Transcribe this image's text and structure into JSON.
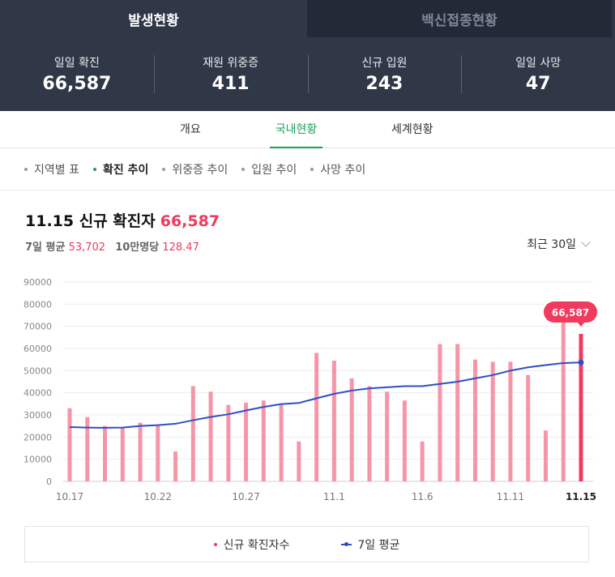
{
  "tabs": {
    "main": "발생현황",
    "vaccine": "백신접종현황"
  },
  "stats": [
    {
      "label": "일일 확진",
      "value": "66,587"
    },
    {
      "label": "재원 위중증",
      "value": "411"
    },
    {
      "label": "신규 입원",
      "value": "243"
    },
    {
      "label": "일일 사망",
      "value": "47"
    }
  ],
  "subnav": {
    "overview": "개요",
    "domestic": "국내현황",
    "world": "세계현황"
  },
  "chips": [
    "지역별 표",
    "확진 추이",
    "위중증 추이",
    "입원 추이",
    "사망 추이"
  ],
  "header": {
    "date": "11.15 신규 확진자",
    "value": "66,587",
    "avg_label": "7일 평균",
    "avg_value": "53,702",
    "per100k_label": "10만명당",
    "per100k_value": "128.47",
    "period": "최근 30일"
  },
  "legend": {
    "bars": "신규 확진자수",
    "line": "7일 평균"
  },
  "colors": {
    "bar": "#f795a8",
    "bar_highlight": "#ef3b5d",
    "line": "#2f4ec4",
    "active_green": "#1aa05a",
    "header_bg": "#303747"
  },
  "chart_data": {
    "type": "bar",
    "x_tick_labels": [
      "10.17",
      "10.22",
      "10.27",
      "11.1",
      "11.6",
      "11.11",
      "11.15"
    ],
    "ylim": [
      0,
      90000
    ],
    "y_ticks": [
      0,
      10000,
      20000,
      30000,
      40000,
      50000,
      60000,
      70000,
      80000,
      90000
    ],
    "grid": true,
    "highlight_label": "66,587",
    "series": [
      {
        "name": "신규 확진자수",
        "type": "bar",
        "values": [
          33000,
          29000,
          25000,
          24500,
          26500,
          25000,
          13500,
          43000,
          40500,
          34500,
          35500,
          36500,
          34500,
          18000,
          58000,
          54500,
          46500,
          43000,
          40500,
          36500,
          18000,
          62000,
          62000,
          55000,
          54000,
          54000,
          48000,
          23000,
          76000,
          66587
        ]
      },
      {
        "name": "7일 평균",
        "type": "line",
        "values": [
          24500,
          24300,
          24200,
          24300,
          25000,
          25400,
          26000,
          27600,
          29100,
          30300,
          32000,
          33600,
          34900,
          35400,
          37500,
          39500,
          41000,
          42000,
          42500,
          43000,
          43000,
          44000,
          45000,
          46500,
          48000,
          50000,
          51500,
          52500,
          53400,
          53702
        ]
      }
    ]
  }
}
